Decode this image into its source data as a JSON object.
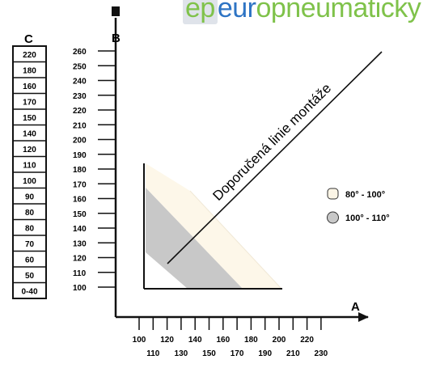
{
  "logo": {
    "part1": "ep",
    "part2": "eur",
    "part3": "opneumaticky"
  },
  "axis_a": {
    "letter": "A",
    "ticks_top": [
      "100",
      "120",
      "140",
      "160",
      "180",
      "200",
      "220"
    ],
    "ticks_bottom": [
      "110",
      "130",
      "150",
      "170",
      "190",
      "210",
      "230"
    ]
  },
  "axis_b": {
    "letter": "B",
    "ticks": [
      "260",
      "250",
      "240",
      "230",
      "220",
      "210",
      "200",
      "190",
      "180",
      "170",
      "160",
      "150",
      "140",
      "130",
      "120",
      "110",
      "100"
    ]
  },
  "axis_c": {
    "letter": "C",
    "values": [
      "220",
      "180",
      "160",
      "170",
      "150",
      "140",
      "120",
      "110",
      "100",
      "90",
      "80",
      "80",
      "70",
      "60",
      "50",
      "0-40"
    ]
  },
  "mount_line_label": "Doporučená linie montáže",
  "legend": [
    {
      "label": "80° - 100°",
      "color": "#fbf5e6"
    },
    {
      "label": "100° - 110°",
      "color": "#c8c8c8"
    }
  ],
  "colors": {
    "zone_light": "#fdf7e9",
    "zone_gray": "#c8c8c8",
    "axis": "#111111"
  }
}
